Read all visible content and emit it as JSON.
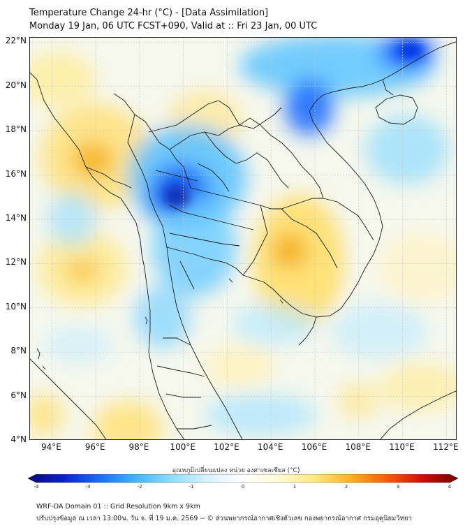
{
  "header": {
    "title_line1": "Temperature Change 24-hr (°C) - [Data Assimilation]",
    "title_line2": "Monday 19 Jan, 06 UTC FCST+090, Valid at :: Fri 23 Jan, 00 UTC"
  },
  "map": {
    "lon_range": [
      93,
      112.5
    ],
    "lat_range": [
      4,
      22.2
    ],
    "lat_labels": [
      "22°N",
      "20°N",
      "18°N",
      "16°N",
      "14°N",
      "12°N",
      "10°N",
      "8°N",
      "6°N",
      "4°N"
    ],
    "lat_values": [
      22,
      20,
      18,
      16,
      14,
      12,
      10,
      8,
      6,
      4
    ],
    "lon_labels": [
      "94°E",
      "96°E",
      "98°E",
      "100°E",
      "102°E",
      "104°E",
      "106°E",
      "108°E",
      "110°E",
      "112°E"
    ],
    "lon_values": [
      94,
      96,
      98,
      100,
      102,
      104,
      106,
      108,
      110,
      112
    ]
  },
  "colorbar": {
    "title": "อุณหภูมิเปลี่ยนแปลง หน่วย องศาเซลเซียส (°C)",
    "tick_labels": [
      "-4",
      "-3",
      "-2",
      "-1",
      "0",
      "1",
      "2",
      "3",
      "4"
    ],
    "tick_values": [
      -4,
      -3,
      -2,
      -1,
      0,
      1,
      2,
      3,
      4
    ],
    "range": [
      -4,
      4
    ],
    "colors": [
      "#0a0a6e",
      "#0c1fd6",
      "#1a6cff",
      "#3fb4ff",
      "#8fdcff",
      "#d8f2ff",
      "#ffffff",
      "#fffbd2",
      "#ffe97a",
      "#ffb31a",
      "#ff5a00",
      "#d60a0a",
      "#6e0000"
    ]
  },
  "footer": {
    "line1": "WRF-DA Domain 01 :: Grid Resolution 9km x 9km",
    "line2": "ปรับปรุงข้อมูล ณ เวลา 13:00น. วัน จ. ที่ 19 ม.ค. 2569 -- © ส่วนพยากรณ์อากาศเชิงตัวเลข กองพยากรณ์อากาศ กรมอุตุนิยมวิทยา"
  },
  "colors": {
    "cold_max": "#0040ff",
    "warm_max": "#f2b21a",
    "coastline": "#1a1a1a",
    "grid": "#c8c8c8"
  }
}
